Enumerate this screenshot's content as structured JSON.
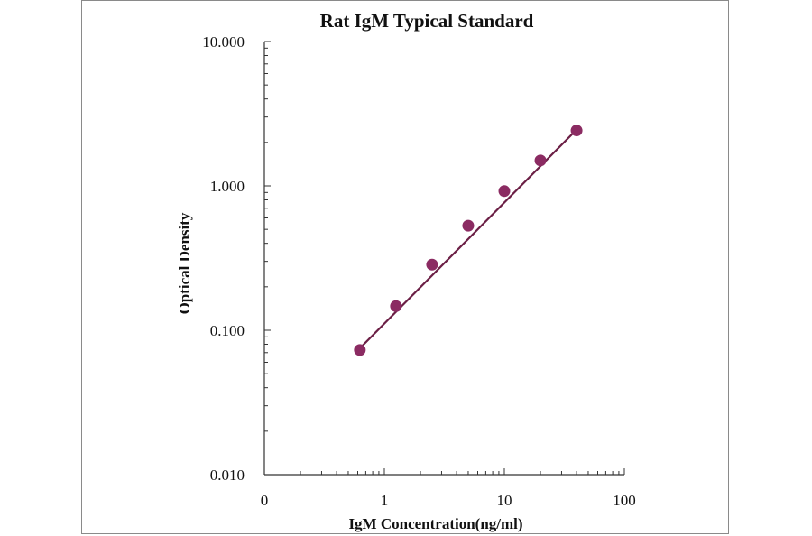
{
  "chart_data": {
    "type": "scatter",
    "title": "Rat IgM Typical Standard",
    "xlabel": "IgM  Concentration(ng/ml)",
    "ylabel": "Optical  Density",
    "x_scale": "log",
    "y_scale": "log",
    "xlim": [
      0.1,
      100
    ],
    "ylim": [
      0.01,
      10
    ],
    "x_tick_labels": [
      {
        "value": 0.1,
        "label": "0"
      },
      {
        "value": 1,
        "label": "1"
      },
      {
        "value": 10,
        "label": "10"
      },
      {
        "value": 100,
        "label": "100"
      }
    ],
    "y_tick_labels": [
      {
        "value": 10,
        "label": "10.000"
      },
      {
        "value": 1,
        "label": "1.000"
      },
      {
        "value": 0.1,
        "label": "0.100"
      },
      {
        "value": 0.01,
        "label": "0.010"
      }
    ],
    "grid": false,
    "legend": "none",
    "series": [
      {
        "x": [
          0.625,
          1.25,
          2.5,
          5,
          10,
          20,
          40
        ],
        "y": [
          0.073,
          0.147,
          0.285,
          0.53,
          0.92,
          1.5,
          2.42
        ]
      }
    ],
    "trendline": {
      "x": [
        0.625,
        40
      ],
      "y": [
        0.075,
        2.45
      ]
    },
    "colors": {
      "marker": "#8b2b62",
      "line": "#6b1f45",
      "axis": "#333333"
    }
  }
}
